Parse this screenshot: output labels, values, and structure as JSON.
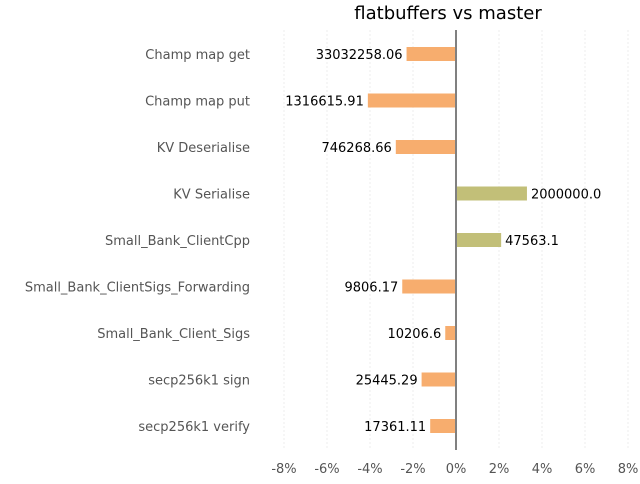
{
  "chart_data": {
    "type": "bar",
    "orientation": "horizontal",
    "title": "flatbuffers vs master",
    "xlabel": "",
    "ylabel": "",
    "xlim": [
      -8,
      8
    ],
    "x_ticks": [
      -8,
      -6,
      -4,
      -2,
      0,
      2,
      4,
      6,
      8
    ],
    "x_tick_labels": [
      "-8%",
      "-6%",
      "-4%",
      "-2%",
      "0%",
      "2%",
      "4%",
      "6%",
      "8%"
    ],
    "grid": true,
    "legend": "none",
    "colors": {
      "negative": "#f7ad6e",
      "positive": "#c2bf78",
      "zero_line": "#808080"
    },
    "categories": [
      "Champ map get",
      "Champ map put",
      "KV Deserialise",
      "KV Serialise",
      "Small_Bank_ClientCpp",
      "Small_Bank_ClientSigs_Forwarding",
      "Small_Bank_Client_Sigs",
      "secp256k1 sign",
      "secp256k1 verify"
    ],
    "values": [
      -2.3,
      -4.1,
      -2.8,
      3.3,
      2.1,
      -2.5,
      -0.5,
      -1.6,
      -1.2
    ],
    "data_labels": [
      "33032258.06",
      "1316615.91",
      "746268.66",
      "2000000.0",
      "47563.1",
      "9806.17",
      "10206.6",
      "25445.29",
      "17361.11"
    ]
  }
}
